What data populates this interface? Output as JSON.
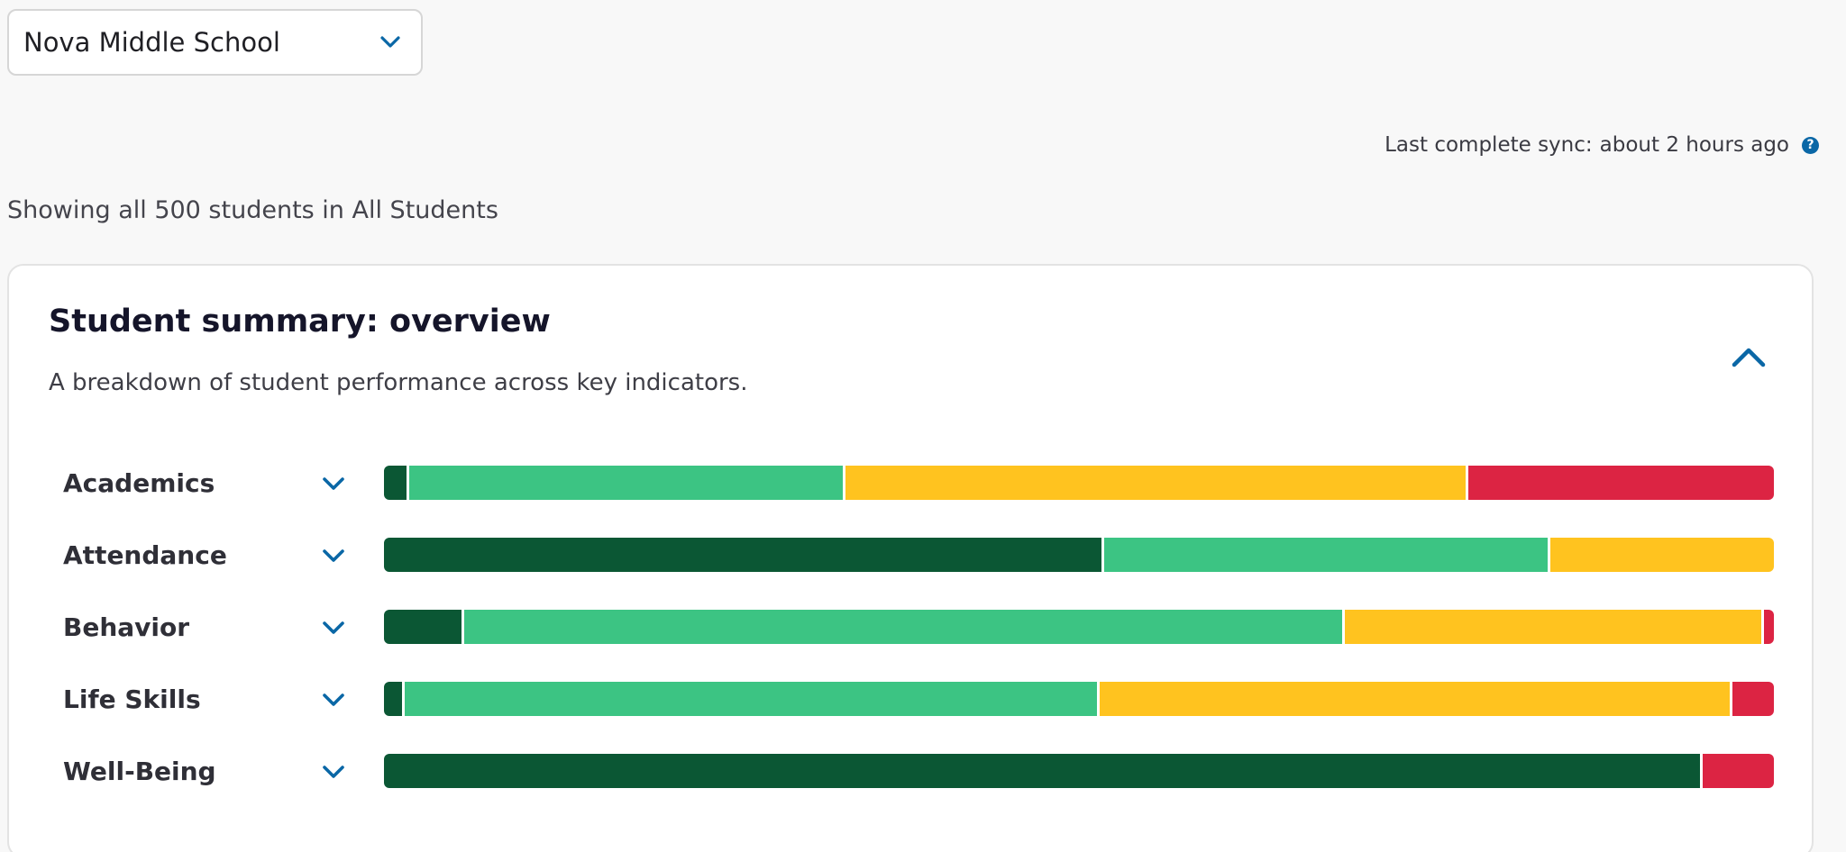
{
  "school_select": {
    "value": "Nova Middle School"
  },
  "sync": {
    "label": "Last complete sync:",
    "value": "about 2 hours ago",
    "help_icon": "?"
  },
  "showing_text": "Showing all 500 students in All Students",
  "card": {
    "title": "Student summary: overview",
    "subtitle": "A breakdown of student performance across key indicators."
  },
  "colors": {
    "dark_green": "#0b5734",
    "green": "#3cc483",
    "yellow": "#ffc31f",
    "red": "#dc2443"
  },
  "chart_data": {
    "type": "bar",
    "stacked": true,
    "orientation": "horizontal",
    "unit": "percent of students",
    "categories": [
      "Academics",
      "Attendance",
      "Behavior",
      "Life Skills",
      "Well-Being"
    ],
    "series": [
      {
        "color": "#0b5734",
        "values": [
          1.8,
          51.8,
          5.8,
          1.5,
          94.9
        ]
      },
      {
        "color": "#3cc483",
        "values": [
          31.4,
          32.1,
          63.3,
          50.0,
          0
        ]
      },
      {
        "color": "#ffc31f",
        "values": [
          44.8,
          16.1,
          30.2,
          45.5,
          0
        ]
      },
      {
        "color": "#dc2443",
        "values": [
          22.0,
          0,
          0.7,
          3.0,
          5.1
        ]
      }
    ]
  }
}
